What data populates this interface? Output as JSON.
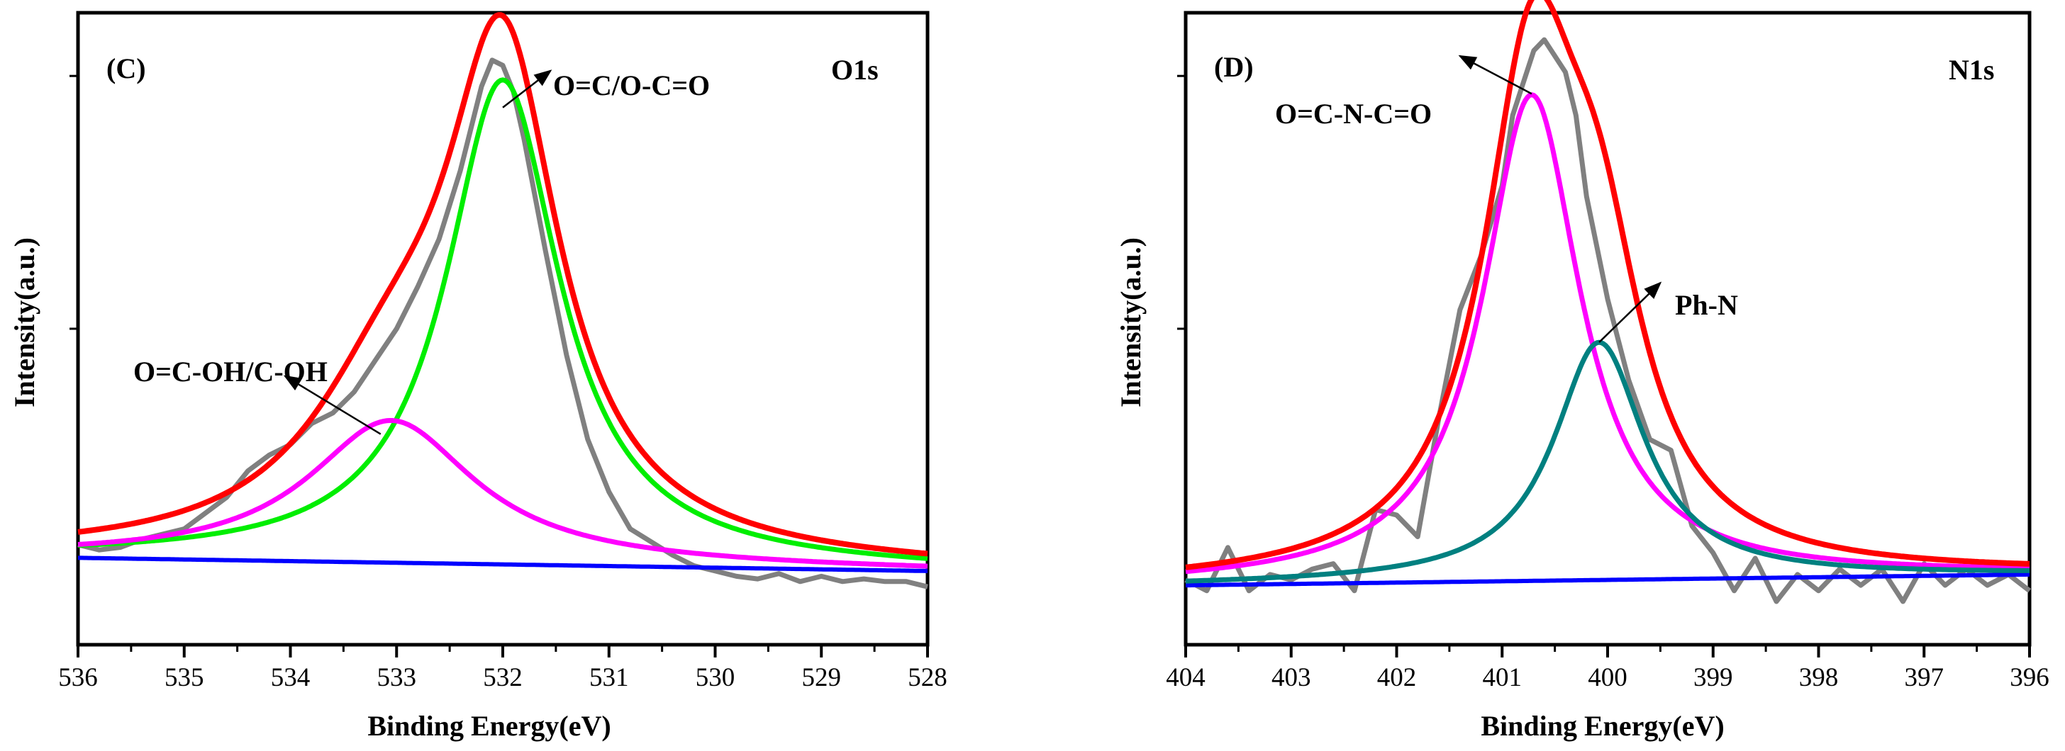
{
  "figure": {
    "title": ""
  },
  "chart_data": [
    {
      "type": "line",
      "panel_label": "(C)",
      "region": "O1s",
      "xlabel": "Binding Energy(eV)",
      "ylabel": "Intensity(a.u.)",
      "xlim": [
        536,
        528
      ],
      "x_reversed": true,
      "ylim": [
        -0.12,
        1.08
      ],
      "yticks_shown": false,
      "xticks": [
        "536",
        "535",
        "534",
        "533",
        "532",
        "531",
        "530",
        "529",
        "528"
      ],
      "colors": {
        "raw": "#808080",
        "envelope": "#ff0000",
        "baseline": "#0000ff",
        "peak_main": "#00ee00",
        "peak_minor": "#ff00ff"
      },
      "peaks": [
        {
          "label": "O=C/O-C=O",
          "center": 532.0,
          "height": 0.92,
          "fwhm": 1.3,
          "color": "#00ee00"
        },
        {
          "label": "O=C-OH/C-OH",
          "center": 533.05,
          "height": 0.27,
          "fwhm": 1.9,
          "color": "#ff00ff"
        }
      ],
      "baseline": {
        "y_at_start": 0.045,
        "y_at_end": 0.02
      },
      "raw": {
        "x": [
          536.0,
          535.8,
          535.6,
          535.4,
          535.2,
          535.0,
          534.8,
          534.6,
          534.4,
          534.2,
          534.0,
          533.8,
          533.6,
          533.4,
          533.2,
          533.0,
          532.8,
          532.6,
          532.4,
          532.2,
          532.1,
          532.0,
          531.9,
          531.8,
          531.6,
          531.4,
          531.2,
          531.0,
          530.8,
          530.6,
          530.4,
          530.2,
          530.0,
          529.8,
          529.6,
          529.4,
          529.2,
          529.0,
          528.8,
          528.6,
          528.4,
          528.2,
          528.0
        ],
        "y": [
          0.07,
          0.06,
          0.065,
          0.08,
          0.09,
          0.1,
          0.13,
          0.16,
          0.21,
          0.24,
          0.26,
          0.3,
          0.32,
          0.36,
          0.42,
          0.48,
          0.56,
          0.65,
          0.78,
          0.94,
          0.99,
          0.98,
          0.93,
          0.84,
          0.63,
          0.43,
          0.27,
          0.17,
          0.1,
          0.075,
          0.05,
          0.03,
          0.02,
          0.01,
          0.005,
          0.015,
          0.0,
          0.01,
          0.0,
          0.005,
          0.0,
          0.0,
          -0.01
        ]
      },
      "annotations": [
        {
          "text": "O=C/O-C=O",
          "x": 529.8,
          "y": 0.96,
          "arrow_from": [
            532.0,
            0.9
          ],
          "arrow_to": [
            531.55,
            0.97
          ]
        },
        {
          "text": "O=C-OH/C-OH",
          "x": 535.3,
          "y": 0.44,
          "arrow_from": [
            533.15,
            0.28
          ],
          "arrow_to": [
            534.05,
            0.39
          ]
        }
      ]
    },
    {
      "type": "line",
      "panel_label": "(D)",
      "region": "N1s",
      "xlabel": "Binding Energy(eV)",
      "ylabel": "Intensity(a.u.)",
      "xlim": [
        404,
        396
      ],
      "x_reversed": true,
      "ylim": [
        -0.12,
        1.05
      ],
      "yticks_shown": false,
      "xticks": [
        "404",
        "403",
        "402",
        "401",
        "400",
        "399",
        "398",
        "397",
        "396"
      ],
      "colors": {
        "raw": "#808080",
        "envelope": "#ff0000",
        "baseline": "#0000ff",
        "peak_main": "#ff00ff",
        "peak_minor": "#008080"
      },
      "peaks": [
        {
          "label": "O=C-N-C=O",
          "center": 400.72,
          "height": 0.9,
          "fwhm": 1.12,
          "color": "#ff00ff"
        },
        {
          "label": "Ph-N",
          "center": 400.08,
          "height": 0.44,
          "fwhm": 1.05,
          "color": "#008080"
        }
      ],
      "baseline": {
        "y_at_start": -0.01,
        "y_at_end": 0.01
      },
      "raw": {
        "x": [
          404.0,
          403.8,
          403.6,
          403.4,
          403.2,
          403.0,
          402.8,
          402.6,
          402.4,
          402.2,
          402.0,
          401.8,
          401.6,
          401.4,
          401.2,
          401.0,
          400.9,
          400.8,
          400.7,
          400.6,
          400.5,
          400.4,
          400.3,
          400.2,
          400.0,
          399.8,
          399.6,
          399.4,
          399.2,
          399.0,
          398.8,
          398.6,
          398.4,
          398.2,
          398.0,
          397.8,
          397.6,
          397.4,
          397.2,
          397.0,
          396.8,
          396.6,
          396.4,
          396.2,
          396.0
        ],
        "y": [
          0.0,
          -0.02,
          0.06,
          -0.02,
          0.01,
          0.0,
          0.02,
          0.03,
          -0.02,
          0.13,
          0.12,
          0.08,
          0.3,
          0.5,
          0.6,
          0.73,
          0.86,
          0.92,
          0.98,
          1.0,
          0.97,
          0.94,
          0.86,
          0.71,
          0.52,
          0.37,
          0.26,
          0.24,
          0.1,
          0.05,
          -0.02,
          0.04,
          -0.04,
          0.01,
          -0.02,
          0.02,
          -0.01,
          0.02,
          -0.04,
          0.03,
          -0.01,
          0.02,
          -0.01,
          0.01,
          -0.02
        ]
      },
      "annotations": [
        {
          "text": "O=C-N-C=O",
          "x": 402.3,
          "y": 0.97,
          "arrow_from": [
            400.72,
            0.9
          ],
          "arrow_to": [
            401.4,
            0.97
          ]
        },
        {
          "text": "Ph-N",
          "x": 398.8,
          "y": 0.55,
          "arrow_from": [
            400.08,
            0.44
          ],
          "arrow_to": [
            399.5,
            0.55
          ]
        }
      ]
    }
  ]
}
